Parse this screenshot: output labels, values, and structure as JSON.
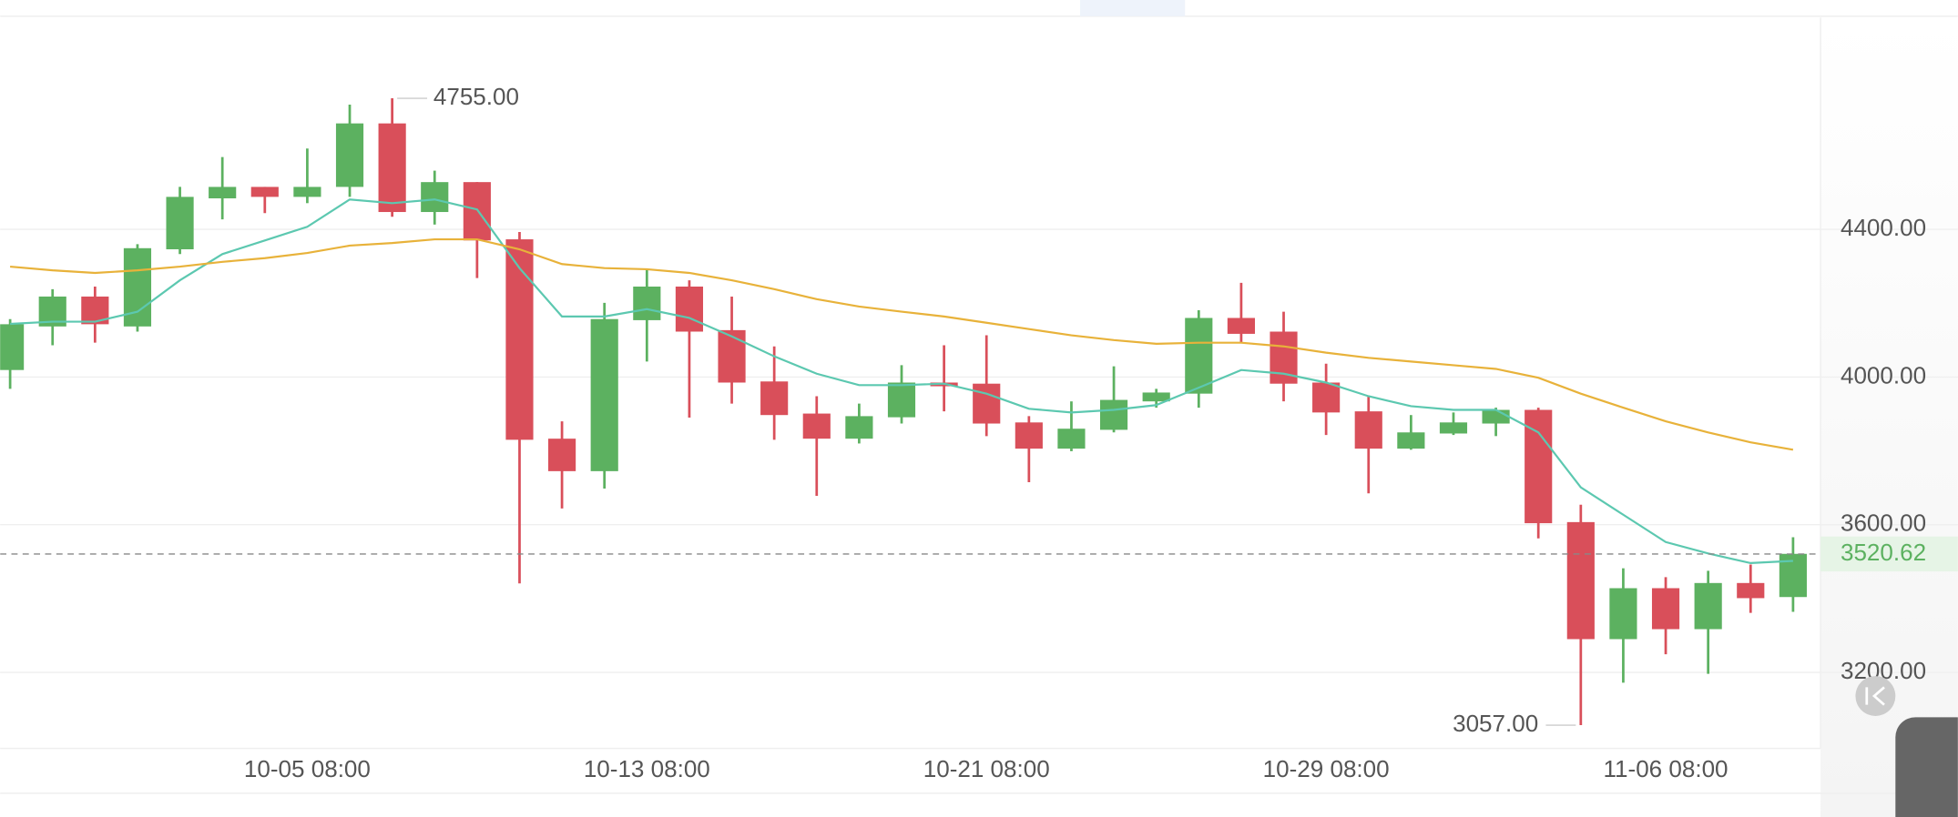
{
  "chart_data": {
    "type": "candlestick",
    "categories": [
      null,
      null,
      null,
      null,
      null,
      null,
      null,
      "10-05 08:00",
      null,
      null,
      null,
      null,
      null,
      null,
      null,
      "10-13 08:00",
      null,
      null,
      null,
      null,
      null,
      null,
      null,
      "10-21 08:00",
      null,
      null,
      null,
      null,
      null,
      null,
      null,
      "10-29 08:00",
      null,
      null,
      null,
      null,
      null,
      null,
      null,
      "11-06 08:00",
      null,
      null,
      null
    ],
    "open": [
      4019,
      4137,
      4218,
      4137,
      4346,
      4484,
      4515,
      4488,
      4515,
      4687,
      4447,
      4528,
      4373,
      3833,
      3745,
      4154,
      4245,
      4127,
      3988,
      3901,
      3833,
      3891,
      3985,
      3982,
      3877,
      3806,
      3857,
      3934,
      3955,
      4160,
      4123,
      3985,
      3907,
      3806,
      3847,
      3874,
      3911,
      3607,
      3290,
      3428,
      3317,
      3442,
      3404
    ],
    "close": [
      4143,
      4218,
      4143,
      4349,
      4488,
      4515,
      4488,
      4515,
      4687,
      4447,
      4528,
      4370,
      3830,
      3745,
      4157,
      4245,
      4123,
      3985,
      3897,
      3833,
      3894,
      3985,
      3975,
      3874,
      3806,
      3860,
      3938,
      3958,
      4160,
      4117,
      3982,
      3904,
      3806,
      3850,
      3877,
      3911,
      3604,
      3290,
      3428,
      3317,
      3442,
      3401,
      3521
    ],
    "high": [
      4157,
      4238,
      4245,
      4360,
      4515,
      4596,
      4515,
      4619,
      4738,
      4755,
      4559,
      4528,
      4393,
      3880,
      4201,
      4292,
      4262,
      4218,
      4083,
      3948,
      3928,
      4032,
      4086,
      4113,
      3894,
      3934,
      4029,
      3968,
      4181,
      4255,
      4177,
      4036,
      3948,
      3897,
      3904,
      3917,
      3917,
      3654,
      3482,
      3458,
      3475,
      3492,
      3566
    ],
    "low": [
      3968,
      4086,
      4093,
      4123,
      4333,
      4427,
      4444,
      4471,
      4488,
      4434,
      4413,
      4268,
      3441,
      3644,
      3698,
      4042,
      3890,
      3928,
      3830,
      3678,
      3820,
      3874,
      3907,
      3840,
      3715,
      3799,
      3850,
      3917,
      3917,
      4093,
      3934,
      3843,
      3685,
      3803,
      3843,
      3840,
      3563,
      3057,
      3172,
      3249,
      3196,
      3361,
      3364
    ],
    "up_color": "#5cb160",
    "down_color": "#d94f5a",
    "series": [
      {
        "color": "#5cc8b0",
        "values": [
          4144,
          4150,
          4150,
          4177,
          4262,
          4333,
          4370,
          4407,
          4481,
          4471,
          4481,
          4454,
          4295,
          4164,
          4164,
          4184,
          4160,
          4110,
          4056,
          4009,
          3978,
          3978,
          3982,
          3955,
          3914,
          3904,
          3911,
          3924,
          3971,
          4019,
          4009,
          3985,
          3948,
          3921,
          3911,
          3911,
          3850,
          3701,
          3627,
          3553,
          3522,
          3496,
          3502
        ]
      },
      {
        "color": "#e8b23a",
        "values": [
          4299,
          4289,
          4282,
          4289,
          4299,
          4312,
          4322,
          4336,
          4356,
          4363,
          4373,
          4373,
          4346,
          4306,
          4295,
          4292,
          4282,
          4262,
          4238,
          4211,
          4191,
          4177,
          4164,
          4147,
          4130,
          4113,
          4100,
          4090,
          4093,
          4093,
          4083,
          4066,
          4052,
          4042,
          4032,
          4022,
          3998,
          3955,
          3917,
          3880,
          3850,
          3823,
          3803
        ]
      }
    ],
    "ylim": [
      2994,
      4974
    ],
    "yticks": [
      {
        "value": 3200,
        "label": "3200.00"
      },
      {
        "value": 3600,
        "label": "3600.00"
      },
      {
        "value": 4000,
        "label": "4000.00"
      },
      {
        "value": 4400,
        "label": "4400.00"
      }
    ],
    "grid": true,
    "current_price": 3520.62,
    "high_annotation": {
      "value": 4755,
      "label": "4755.00"
    },
    "low_annotation": {
      "value": 3057,
      "label": "3057.00"
    }
  }
}
